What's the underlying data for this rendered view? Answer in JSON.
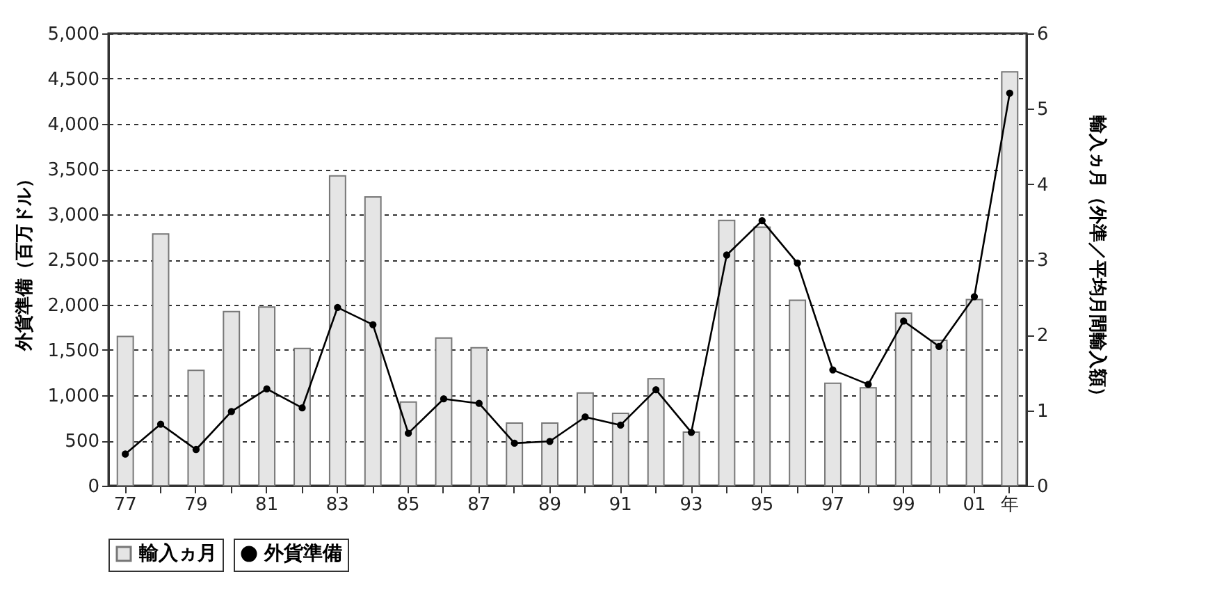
{
  "chart_data": {
    "type": "bar",
    "categories": [
      "77",
      null,
      "79",
      null,
      "81",
      null,
      "83",
      null,
      "85",
      null,
      "87",
      null,
      "89",
      null,
      "91",
      null,
      "93",
      null,
      "95",
      null,
      "97",
      null,
      "99",
      null,
      "01",
      "年"
    ],
    "series": [
      {
        "name": "輸入ヵ月",
        "axis": "y2",
        "color": "#e5e5e5",
        "values": [
          1.98,
          3.34,
          1.53,
          2.31,
          2.37,
          1.82,
          4.11,
          3.83,
          1.11,
          1.96,
          1.83,
          0.83,
          0.83,
          1.23,
          0.96,
          1.42,
          0.71,
          3.52,
          3.43,
          2.46,
          1.36,
          1.3,
          2.29,
          1.93,
          2.47,
          5.49
        ]
      },
      {
        "name": "外貨準備",
        "type": "line",
        "color": "#000000",
        "marker": "circle",
        "values": [
          350,
          680,
          400,
          820,
          1070,
          860,
          1970,
          1780,
          580,
          960,
          910,
          470,
          490,
          760,
          670,
          1060,
          590,
          2550,
          2930,
          2460,
          1280,
          1120,
          1820,
          1540,
          2090,
          4340
        ]
      }
    ],
    "ylabel": "外貨準備（百万ドル）",
    "y2label": "輸入ヵ月（外準／平均月間輸入額）",
    "ylim": [
      0,
      5000
    ],
    "yticks": [
      0,
      {
        "value": 500,
        "label": "500"
      },
      {
        "value": 1000,
        "label": "1,000"
      },
      {
        "value": 1500,
        "label": "1,500"
      },
      {
        "value": 2000,
        "label": "2,000"
      },
      {
        "value": 2500,
        "label": "2,500"
      },
      {
        "value": 3000,
        "label": "3,000"
      },
      {
        "value": 3500,
        "label": "3,500"
      },
      {
        "value": 4000,
        "label": "4,000"
      },
      {
        "value": 4500,
        "label": "4,500"
      },
      {
        "value": 5000,
        "label": "5,000"
      }
    ],
    "y2lim": [
      0,
      6
    ],
    "y2ticks": [
      0,
      1,
      2,
      3,
      4,
      5,
      6
    ],
    "grid": "y",
    "legend": "bottom",
    "line_style": "solid"
  }
}
